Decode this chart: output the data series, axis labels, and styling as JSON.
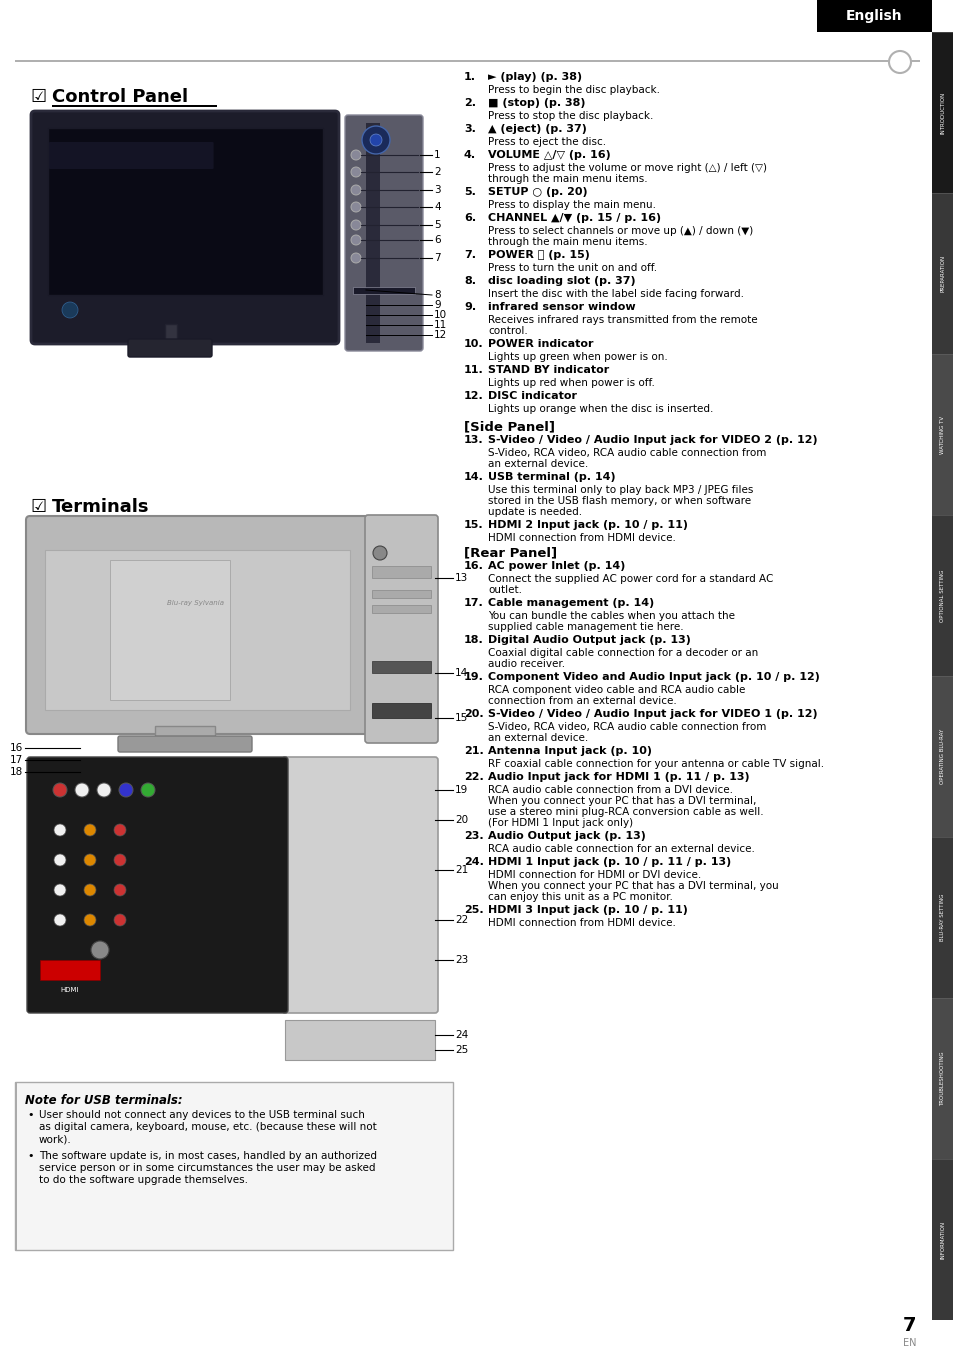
{
  "page_bg": "#ffffff",
  "header_bg": "#000000",
  "header_text": "English",
  "header_text_color": "#ffffff",
  "tab_labels": [
    "INTRODUCTION",
    "PREPARATION",
    "WATCHING TV",
    "OPTIONAL SETTING",
    "OPERATING BLU-RAY",
    "BLU-RAY SETTING",
    "TROUBLESHOOTING",
    "INFORMATION"
  ],
  "tab_active_idx": 0,
  "section1_title_check": "☑",
  "section1_title": "Control Panel",
  "section2_title_check": "☑",
  "section2_title": "Terminals",
  "items1": [
    {
      "num": "1.",
      "bold": "► (play) (p. 38)",
      "body": "Press to begin the disc playback."
    },
    {
      "num": "2.",
      "bold": "■ (stop) (p. 38)",
      "body": "Press to stop the disc playback."
    },
    {
      "num": "3.",
      "bold": "▲ (eject) (p. 37)",
      "body": "Press to eject the disc."
    },
    {
      "num": "4.",
      "bold": "VOLUME △/▽ (p. 16)",
      "body": "Press to adjust the volume or move right (△) / left (▽)\nthrough the main menu items."
    },
    {
      "num": "5.",
      "bold": "SETUP ○ (p. 20)",
      "body": "Press to display the main menu."
    },
    {
      "num": "6.",
      "bold": "CHANNEL ▲/▼ (p. 15 / p. 16)",
      "body": "Press to select channels or move up (▲) / down (▼)\nthrough the main menu items."
    },
    {
      "num": "7.",
      "bold": "POWER ⏻ (p. 15)",
      "body": "Press to turn the unit on and off."
    },
    {
      "num": "8.",
      "bold": "disc loading slot (p. 37)",
      "body": "Insert the disc with the label side facing forward."
    },
    {
      "num": "9.",
      "bold": "infrared sensor window",
      "body": "Receives infrared rays transmitted from the remote\ncontrol."
    },
    {
      "num": "10.",
      "bold": "POWER indicator",
      "body": "Lights up green when power is on."
    },
    {
      "num": "11.",
      "bold": "STAND BY indicator",
      "body": "Lights up red when power is off."
    },
    {
      "num": "12.",
      "bold": "DISC indicator",
      "body": "Lights up orange when the disc is inserted."
    }
  ],
  "side_panel_header": "[Side Panel]",
  "rear_panel_header": "[Rear Panel]",
  "items2": [
    {
      "num": "13.",
      "bold": "S-Video / Video / Audio Input jack for VIDEO 2",
      "bold2": " (p. 12)",
      "body": "S-Video, RCA video, RCA audio cable connection from\nan external device."
    },
    {
      "num": "14.",
      "bold": "USB terminal",
      "bold2": " (p. 14)",
      "body": "Use this terminal only to play back MP3 / JPEG files\nstored in the USB flash memory, or when software\nupdate is needed."
    },
    {
      "num": "15.",
      "bold": "HDMI 2 Input jack",
      "bold2": " (p. 10 / p. 11)",
      "body": "HDMI connection from HDMI device."
    },
    {
      "num": "16.",
      "bold": "AC power Inlet",
      "bold2": " (p. 14)",
      "body": "Connect the supplied AC power cord for a standard AC\noutlet.",
      "section": "[Rear Panel]"
    },
    {
      "num": "17.",
      "bold": "Cable management",
      "bold2": " (p. 14)",
      "body": "You can bundle the cables when you attach the\nsupplied cable management tie here."
    },
    {
      "num": "18.",
      "bold": "Digital Audio Output jack",
      "bold2": " (p. 13)",
      "body": "Coaxial digital cable connection for a decoder or an\naudio receiver."
    },
    {
      "num": "19.",
      "bold": "Component Video and Audio Input jack",
      "bold2": " (p. 10 / p. 12)",
      "body": "RCA component video cable and RCA audio cable\nconnection from an external device."
    },
    {
      "num": "20.",
      "bold": "S-Video / Video / Audio Input jack for VIDEO 1",
      "bold2": " (p. 12)",
      "body": "S-Video, RCA video, RCA audio cable connection from\nan external device."
    },
    {
      "num": "21.",
      "bold": "Antenna Input jack",
      "bold2": " (p. 10)",
      "body": "RF coaxial cable connection for your antenna or cable TV signal."
    },
    {
      "num": "22.",
      "bold": "Audio Input jack for HDMI 1",
      "bold2": " (p. 11 / p. 13)",
      "body": "RCA audio cable connection from a DVI device.\nWhen you connect your PC that has a DVI terminal,\nuse a stereo mini plug-RCA conversion cable as well.\n(For HDMI 1 Input jack only)"
    },
    {
      "num": "23.",
      "bold": "Audio Output jack",
      "bold2": " (p. 13)",
      "body": "RCA audio cable connection for an external device."
    },
    {
      "num": "24.",
      "bold": "HDMI 1 Input jack",
      "bold2": " (p. 10 / p. 11 / p. 13)",
      "body": "HDMI connection for HDMI or DVI device.\nWhen you connect your PC that has a DVI terminal, you\ncan enjoy this unit as a PC monitor."
    },
    {
      "num": "25.",
      "bold": "HDMI 3 Input jack",
      "bold2": " (p. 10 / p. 11)",
      "body": "HDMI connection from HDMI device."
    }
  ],
  "note_title": "Note for USB terminals:",
  "note_bullets": [
    "User should not connect any devices to the USB terminal such\nas digital camera, keyboard, mouse, etc. (because these will not\nwork).",
    "The software update is, in most cases, handled by an authorized\nservice person or in some circumstances the user may be asked\nto do the software upgrade themselves."
  ],
  "page_number": "7",
  "page_label": "EN"
}
